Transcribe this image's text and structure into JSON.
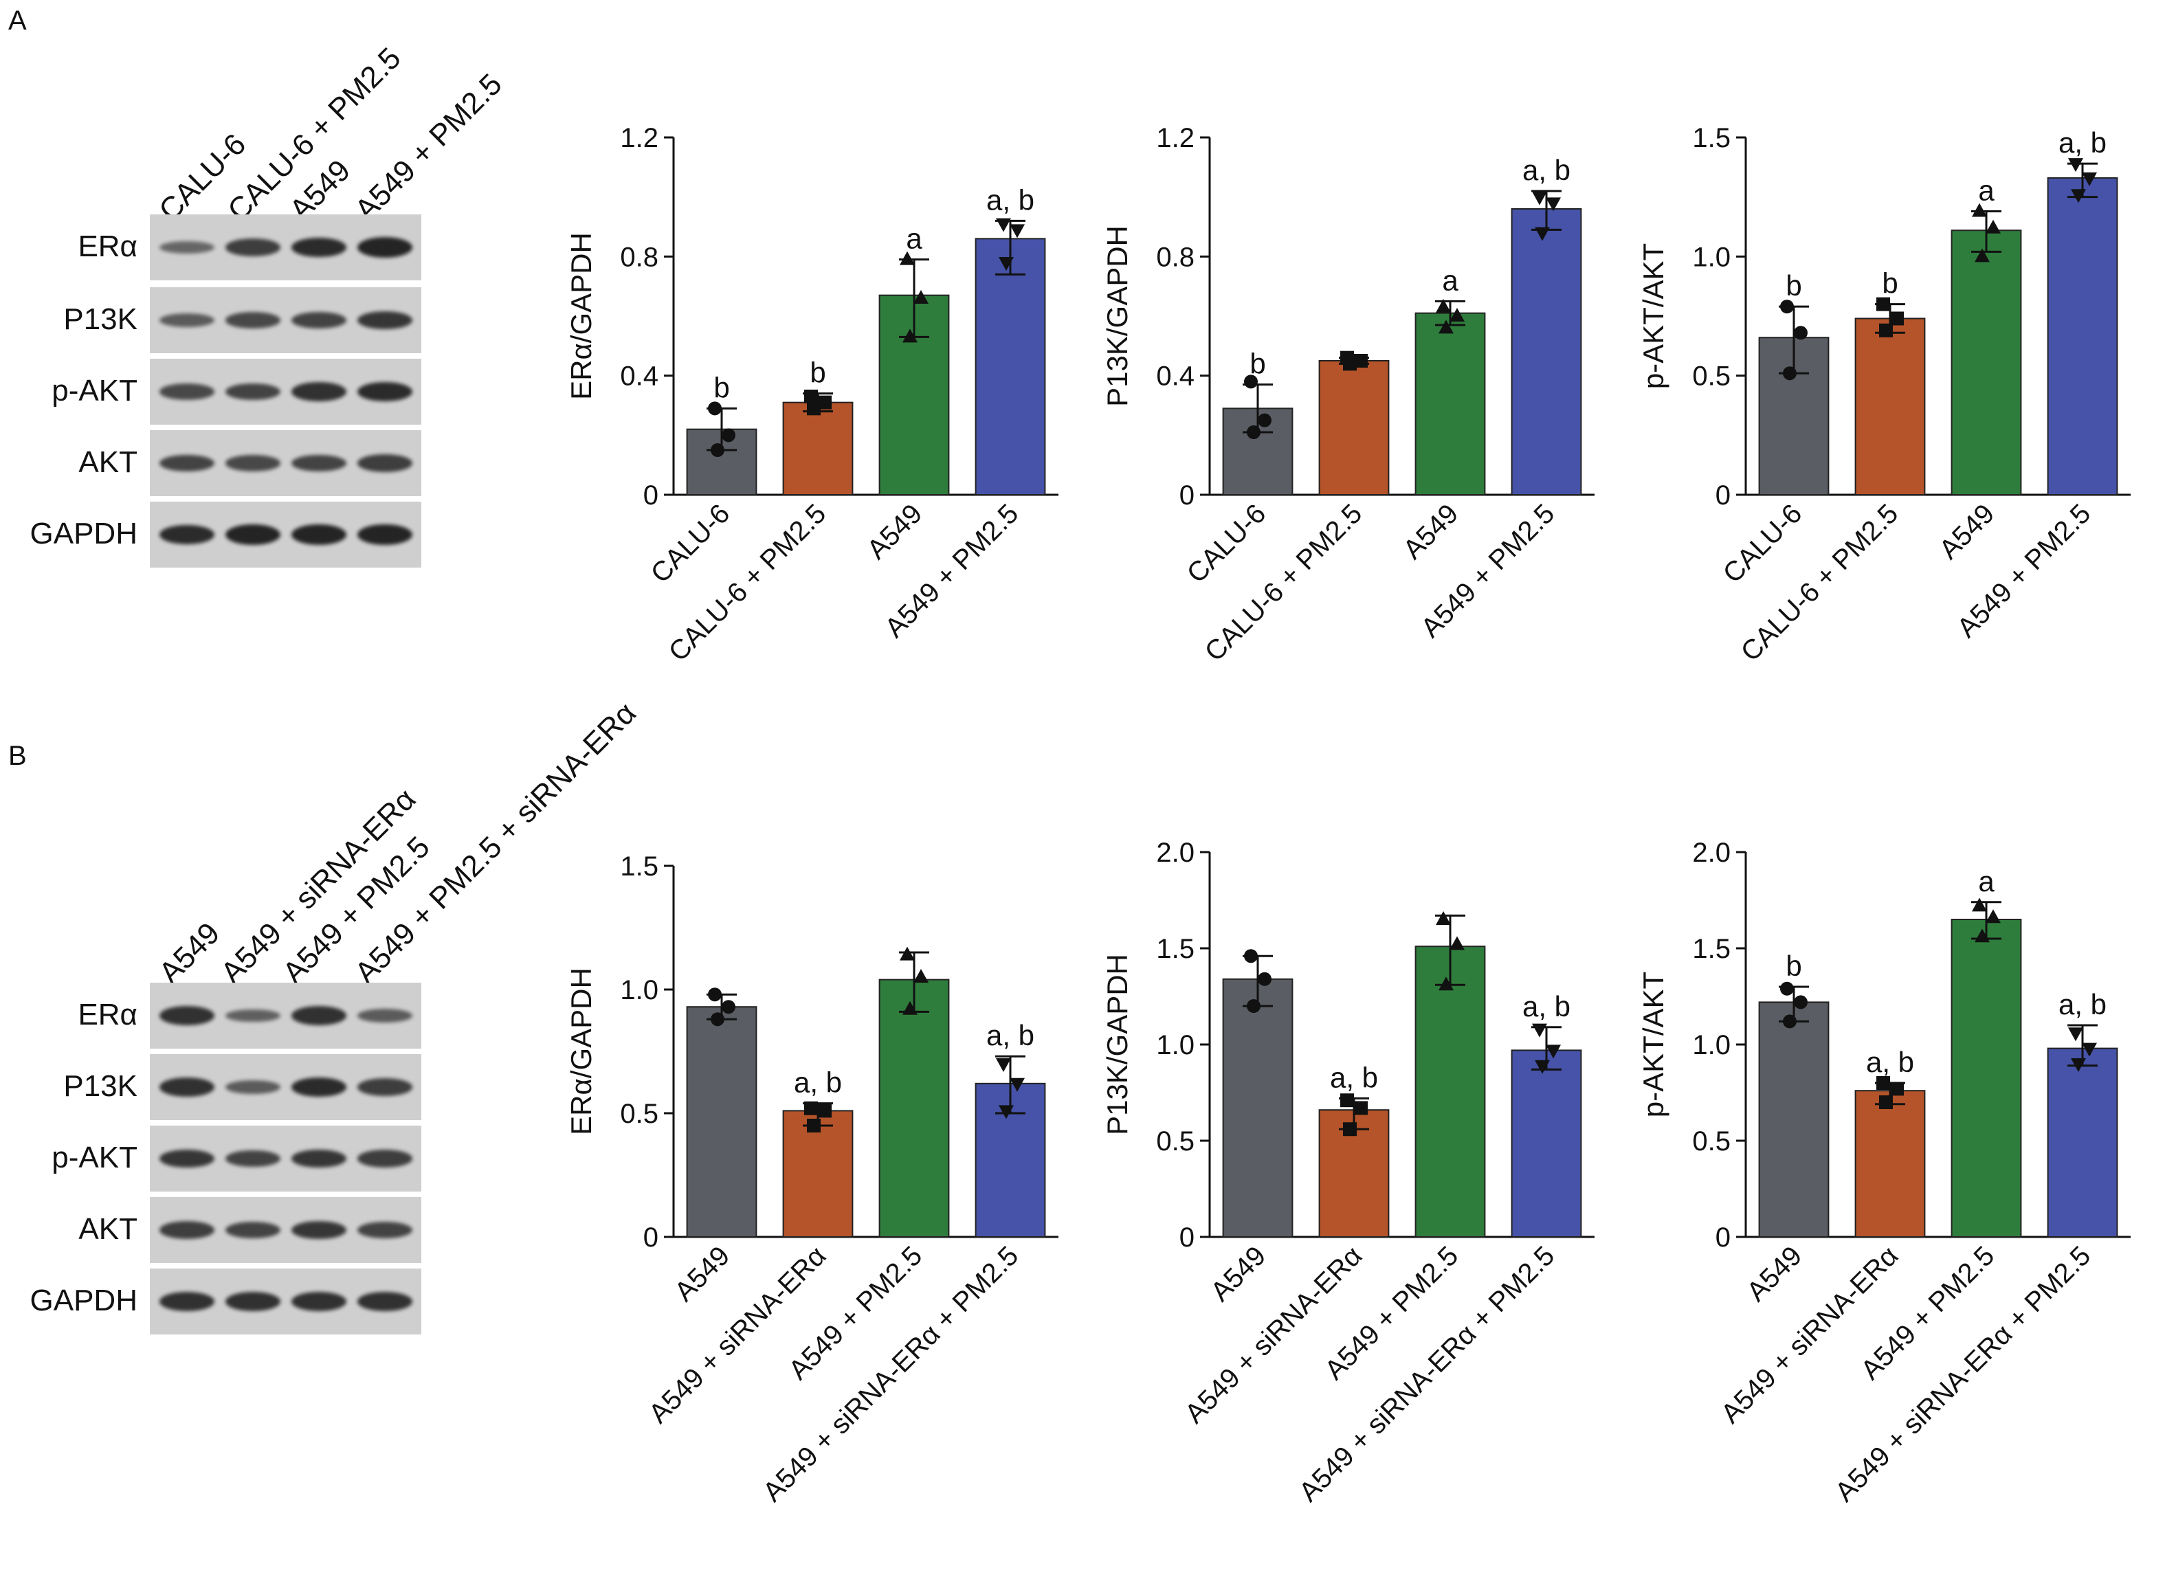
{
  "panels": {
    "A": {
      "letter": "A",
      "lanes": [
        "CALU-6",
        "CALU-6 + PM2.5",
        "A549",
        "A549 + PM2.5"
      ],
      "blot_rows": [
        {
          "label": "ERα",
          "band_intensity": [
            0.35,
            0.7,
            0.85,
            0.9
          ]
        },
        {
          "label": "P13K",
          "band_intensity": [
            0.45,
            0.6,
            0.65,
            0.75
          ]
        },
        {
          "label": "p-AKT",
          "band_intensity": [
            0.6,
            0.65,
            0.8,
            0.85
          ]
        },
        {
          "label": "AKT",
          "band_intensity": [
            0.65,
            0.6,
            0.65,
            0.7
          ]
        },
        {
          "label": "GAPDH",
          "band_intensity": [
            0.85,
            0.9,
            0.9,
            0.9
          ]
        }
      ]
    },
    "B": {
      "letter": "B",
      "lanes": [
        "A549",
        "A549 + siRNA-ERα",
        "A549 + PM2.5",
        "A549 + PM2.5 + siRNA-ERα"
      ],
      "blot_rows": [
        {
          "label": "ERα",
          "band_intensity": [
            0.8,
            0.4,
            0.8,
            0.45
          ]
        },
        {
          "label": "P13K",
          "band_intensity": [
            0.8,
            0.45,
            0.85,
            0.7
          ]
        },
        {
          "label": "p-AKT",
          "band_intensity": [
            0.75,
            0.65,
            0.75,
            0.7
          ]
        },
        {
          "label": "AKT",
          "band_intensity": [
            0.7,
            0.65,
            0.75,
            0.65
          ]
        },
        {
          "label": "GAPDH",
          "band_intensity": [
            0.8,
            0.8,
            0.8,
            0.8
          ]
        }
      ]
    }
  },
  "colors": {
    "bar1": "#5a5d63",
    "bar2": "#b5542a",
    "bar3": "#2f7d3c",
    "bar4": "#4653a8",
    "axis": "#111111"
  },
  "chart_data": [
    {
      "type": "bar",
      "panel": "A",
      "categories": [
        "CALU-6",
        "CALU-6 + PM2.5",
        "A549",
        "A549 + PM2.5"
      ],
      "values": [
        0.22,
        0.31,
        0.67,
        0.86
      ],
      "errors_up": [
        0.07,
        0.03,
        0.12,
        0.06
      ],
      "errors_down": [
        0.07,
        0.03,
        0.14,
        0.12
      ],
      "points": [
        [
          0.29,
          0.15,
          0.2
        ],
        [
          0.33,
          0.29,
          0.31
        ],
        [
          0.79,
          0.53,
          0.66
        ],
        [
          0.91,
          0.78,
          0.89
        ]
      ],
      "markers": [
        "circle",
        "square",
        "triangle",
        "triangle-down"
      ],
      "annotations": [
        "b",
        "b",
        "a",
        "a, b"
      ],
      "ylabel": "ERα/GAPDH",
      "ylim": [
        0,
        1.2
      ],
      "yticks": [
        0,
        0.4,
        0.8,
        1.2
      ],
      "ytick_labels": [
        "0",
        "0.4",
        "0.8",
        "1.2"
      ]
    },
    {
      "type": "bar",
      "panel": "A",
      "categories": [
        "CALU-6",
        "CALU-6 + PM2.5",
        "A549",
        "A549 + PM2.5"
      ],
      "values": [
        0.29,
        0.45,
        0.61,
        0.96
      ],
      "errors_up": [
        0.08,
        0.01,
        0.04,
        0.06
      ],
      "errors_down": [
        0.08,
        0.01,
        0.04,
        0.07
      ],
      "points": [
        [
          0.38,
          0.21,
          0.25
        ],
        [
          0.46,
          0.44,
          0.45
        ],
        [
          0.63,
          0.56,
          0.6
        ],
        [
          1.0,
          0.88,
          0.98
        ]
      ],
      "markers": [
        "circle",
        "square",
        "triangle",
        "triangle-down"
      ],
      "annotations": [
        "b",
        "",
        "a",
        "a, b"
      ],
      "ylabel": "P13K/GAPDH",
      "ylim": [
        0,
        1.2
      ],
      "yticks": [
        0,
        0.4,
        0.8,
        1.2
      ],
      "ytick_labels": [
        "0",
        "0.4",
        "0.8",
        "1.2"
      ]
    },
    {
      "type": "bar",
      "panel": "A",
      "categories": [
        "CALU-6",
        "CALU-6 + PM2.5",
        "A549",
        "A549 + PM2.5"
      ],
      "values": [
        0.66,
        0.74,
        1.11,
        1.33
      ],
      "errors_up": [
        0.13,
        0.06,
        0.08,
        0.06
      ],
      "errors_down": [
        0.15,
        0.06,
        0.09,
        0.08
      ],
      "points": [
        [
          0.79,
          0.51,
          0.68
        ],
        [
          0.8,
          0.69,
          0.74
        ],
        [
          1.19,
          1.0,
          1.12
        ],
        [
          1.39,
          1.26,
          1.33
        ]
      ],
      "markers": [
        "circle",
        "square",
        "triangle",
        "triangle-down"
      ],
      "annotations": [
        "b",
        "b",
        "a",
        "a, b"
      ],
      "ylabel": "p-AKT/AKT",
      "ylim": [
        0,
        1.5
      ],
      "yticks": [
        0,
        0.5,
        1.0,
        1.5
      ],
      "ytick_labels": [
        "0",
        "0.5",
        "1.0",
        "1.5"
      ]
    },
    {
      "type": "bar",
      "panel": "B",
      "categories": [
        "A549",
        "A549 + siRNA-ERα",
        "A549 + PM2.5",
        "A549 + siRNA-ERα + PM2.5"
      ],
      "values": [
        0.93,
        0.51,
        1.04,
        0.62
      ],
      "errors_up": [
        0.05,
        0.03,
        0.11,
        0.11
      ],
      "errors_down": [
        0.05,
        0.06,
        0.13,
        0.12
      ],
      "points": [
        [
          0.98,
          0.88,
          0.93
        ],
        [
          0.52,
          0.45,
          0.51
        ],
        [
          1.14,
          0.92,
          1.05
        ],
        [
          0.7,
          0.51,
          0.62
        ]
      ],
      "markers": [
        "circle",
        "square",
        "triangle",
        "triangle-down"
      ],
      "annotations": [
        "",
        "a, b",
        "",
        "a, b"
      ],
      "ylabel": "ERα/GAPDH",
      "ylim": [
        0,
        1.5
      ],
      "yticks": [
        0,
        0.5,
        1.0,
        1.5
      ],
      "ytick_labels": [
        "0",
        "0.5",
        "1.0",
        "1.5"
      ]
    },
    {
      "type": "bar",
      "panel": "B",
      "categories": [
        "A549",
        "A549 + siRNA-ERα",
        "A549 + PM2.5",
        "A549 + siRNA-ERα + PM2.5"
      ],
      "values": [
        1.34,
        0.66,
        1.51,
        0.97
      ],
      "errors_up": [
        0.12,
        0.06,
        0.16,
        0.12
      ],
      "errors_down": [
        0.14,
        0.1,
        0.2,
        0.1
      ],
      "points": [
        [
          1.46,
          1.2,
          1.34
        ],
        [
          0.71,
          0.56,
          0.67
        ],
        [
          1.65,
          1.31,
          1.52
        ],
        [
          1.08,
          0.89,
          0.97
        ]
      ],
      "markers": [
        "circle",
        "square",
        "triangle",
        "triangle-down"
      ],
      "annotations": [
        "",
        "a, b",
        "",
        "a, b"
      ],
      "ylabel": "P13K/GAPDH",
      "ylim": [
        0,
        2.0
      ],
      "yticks": [
        0,
        0.5,
        1.0,
        1.5,
        2.0
      ],
      "ytick_labels": [
        "0",
        "0.5",
        "1.0",
        "1.5",
        "2.0"
      ]
    },
    {
      "type": "bar",
      "panel": "B",
      "categories": [
        "A549",
        "A549 + siRNA-ERα",
        "A549 + PM2.5",
        "A549 + siRNA-ERα + PM2.5"
      ],
      "values": [
        1.22,
        0.76,
        1.65,
        0.98
      ],
      "errors_up": [
        0.08,
        0.04,
        0.09,
        0.12
      ],
      "errors_down": [
        0.1,
        0.07,
        0.1,
        0.09
      ],
      "points": [
        [
          1.29,
          1.12,
          1.22
        ],
        [
          0.8,
          0.7,
          0.77
        ],
        [
          1.72,
          1.56,
          1.66
        ],
        [
          1.06,
          0.9,
          0.98
        ]
      ],
      "markers": [
        "circle",
        "square",
        "triangle",
        "triangle-down"
      ],
      "annotations": [
        "b",
        "a, b",
        "a",
        "a, b"
      ],
      "ylabel": "p-AKT/AKT",
      "ylim": [
        0,
        2.0
      ],
      "yticks": [
        0,
        0.5,
        1.0,
        1.5,
        2.0
      ],
      "ytick_labels": [
        "0",
        "0.5",
        "1.0",
        "1.5",
        "2.0"
      ]
    }
  ]
}
